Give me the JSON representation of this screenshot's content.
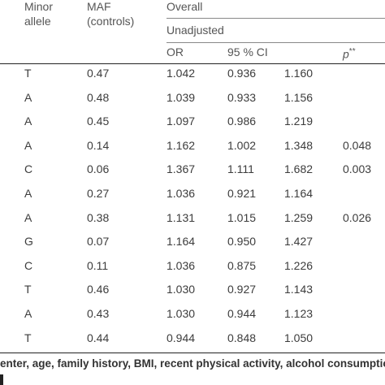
{
  "header": {
    "minor_allele_line1": "Minor",
    "minor_allele_line2": "allele",
    "maf_line1": "MAF",
    "maf_line2": "(controls)",
    "overall": "Overall",
    "unadjusted": "Unadjusted",
    "or": "OR",
    "ci": "95 % CI",
    "p": "p**"
  },
  "rows": [
    {
      "allele": "T",
      "maf": "0.47",
      "or": "1.042",
      "ci_low": "0.936",
      "ci_high": "1.160",
      "p": ""
    },
    {
      "allele": "A",
      "maf": "0.48",
      "or": "1.039",
      "ci_low": "0.933",
      "ci_high": "1.156",
      "p": ""
    },
    {
      "allele": "A",
      "maf": "0.45",
      "or": "1.097",
      "ci_low": "0.986",
      "ci_high": "1.219",
      "p": ""
    },
    {
      "allele": "A",
      "maf": "0.14",
      "or": "1.162",
      "ci_low": "1.002",
      "ci_high": "1.348",
      "p": "0.048"
    },
    {
      "allele": "C",
      "maf": "0.06",
      "or": "1.367",
      "ci_low": "1.111",
      "ci_high": "1.682",
      "p": "0.003"
    },
    {
      "allele": "A",
      "maf": "0.27",
      "or": "1.036",
      "ci_low": "0.921",
      "ci_high": "1.164",
      "p": ""
    },
    {
      "allele": "A",
      "maf": "0.38",
      "or": "1.131",
      "ci_low": "1.015",
      "ci_high": "1.259",
      "p": "0.026"
    },
    {
      "allele": "G",
      "maf": "0.07",
      "or": "1.164",
      "ci_low": "0.950",
      "ci_high": "1.427",
      "p": ""
    },
    {
      "allele": "C",
      "maf": "0.11",
      "or": "1.036",
      "ci_low": "0.875",
      "ci_high": "1.226",
      "p": ""
    },
    {
      "allele": "T",
      "maf": "0.46",
      "or": "1.030",
      "ci_low": "0.927",
      "ci_high": "1.143",
      "p": ""
    },
    {
      "allele": "A",
      "maf": "0.43",
      "or": "1.030",
      "ci_low": "0.944",
      "ci_high": "1.123",
      "p": ""
    },
    {
      "allele": "T",
      "maf": "0.44",
      "or": "0.944",
      "ci_low": "0.848",
      "ci_high": "1.050",
      "p": ""
    }
  ],
  "footnote": "enter, age, family history, BMI, recent physical activity, alcohol consumption,"
}
